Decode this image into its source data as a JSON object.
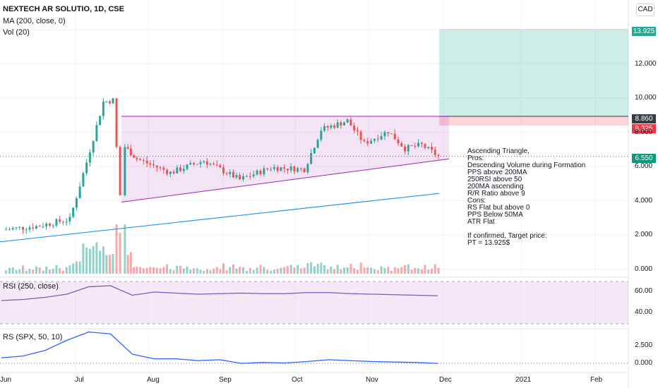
{
  "legend": {
    "title": "NEXTECH AR SOLUTIO, 1D, CSE",
    "ma": "MA (200, close, 0)",
    "vol": "Vol (20)"
  },
  "currency_button": "CAD",
  "panes": {
    "rsi_label": "RSI (250, close)",
    "rs_label": "RS (SPX, 50, 10)"
  },
  "price_tags": [
    {
      "value": "13.925",
      "color": "#22ab94"
    },
    {
      "value": "8.860",
      "color": "#363a45"
    },
    {
      "value": "8.325",
      "color": "#f23645"
    },
    {
      "value": "6.550",
      "color": "#089981"
    }
  ],
  "note": {
    "lines": [
      "Ascending Triangle,",
      "Pros:",
      "Descending Volume during Formation",
      "PPS above 200MA",
      "250RSI above 50",
      "200MA ascending",
      "R/R Ratio above 9",
      "Cons:",
      "RS Flat but above 0",
      "PPS Below 50MA",
      "ATR Flat",
      "",
      "If confirmed, Target price:",
      "PT = 13.925$"
    ]
  },
  "chart_data": {
    "type": "candlestick",
    "title": "NEXTECH AR SOLUTIO, 1D, CSE",
    "currency": "CAD",
    "price_axis": {
      "ticks": [
        "12.000",
        "10.000",
        "8.000",
        "6.000",
        "4.000",
        "2.000",
        "0.000"
      ],
      "range": [
        0.0,
        14.5
      ]
    },
    "time_axis": {
      "ticks": [
        "Jun",
        "Jul",
        "Aug",
        "Sep",
        "Oct",
        "Nov",
        "Dec",
        "2021",
        "Feb"
      ]
    },
    "last_price": 6.55,
    "trade_setup": {
      "target": 13.925,
      "entry": 8.86,
      "stop": 8.325
    },
    "pattern": {
      "name": "Ascending Triangle",
      "resistance": 8.86,
      "support_start": 3.9,
      "support_end": 6.4
    },
    "ma200": {
      "start": 1.6,
      "end": 4.4
    },
    "price_series": [
      {
        "date": "2020-06-01",
        "close": 2.3
      },
      {
        "date": "2020-06-15",
        "close": 2.5
      },
      {
        "date": "2020-06-29",
        "close": 2.9
      },
      {
        "date": "2020-07-06",
        "close": 6.2
      },
      {
        "date": "2020-07-13",
        "close": 9.7
      },
      {
        "date": "2020-07-17",
        "close": 9.8
      },
      {
        "date": "2020-07-20",
        "close": 4.3
      },
      {
        "date": "2020-07-22",
        "close": 7.1
      },
      {
        "date": "2020-07-27",
        "close": 6.4
      },
      {
        "date": "2020-08-10",
        "close": 5.6
      },
      {
        "date": "2020-08-24",
        "close": 6.3
      },
      {
        "date": "2020-09-08",
        "close": 5.2
      },
      {
        "date": "2020-09-21",
        "close": 5.9
      },
      {
        "date": "2020-10-05",
        "close": 5.8
      },
      {
        "date": "2020-10-12",
        "close": 8.1
      },
      {
        "date": "2020-10-23",
        "close": 8.6
      },
      {
        "date": "2020-10-30",
        "close": 7.3
      },
      {
        "date": "2020-11-09",
        "close": 8.0
      },
      {
        "date": "2020-11-16",
        "close": 7.0
      },
      {
        "date": "2020-11-23",
        "close": 7.2
      },
      {
        "date": "2020-11-30",
        "close": 6.55
      }
    ],
    "volume_axis": {
      "ticks": [
        "0.000"
      ]
    },
    "rsi": {
      "label": "RSI (250, close)",
      "ticks": [
        "60.00",
        "40.00"
      ],
      "range": [
        30,
        70
      ],
      "values": [
        52,
        53,
        55,
        58,
        65,
        66,
        57,
        60,
        59,
        58,
        58.5,
        59,
        58.5,
        58.5,
        59.5,
        59.5,
        58.5,
        58,
        57.5,
        57,
        56.5
      ]
    },
    "rs": {
      "label": "RS (SPX, 50, 10)",
      "ticks": [
        "2.500",
        "0.000"
      ],
      "range": [
        -0.6,
        3.6
      ],
      "values": [
        0.6,
        0.8,
        1.4,
        2.5,
        3.4,
        3.2,
        1.0,
        0.5,
        0.5,
        0.3,
        0.4,
        0.0,
        0.1,
        0.05,
        0.2,
        0.4,
        0.3,
        0.2,
        0.15,
        0.1,
        0.0
      ]
    }
  }
}
